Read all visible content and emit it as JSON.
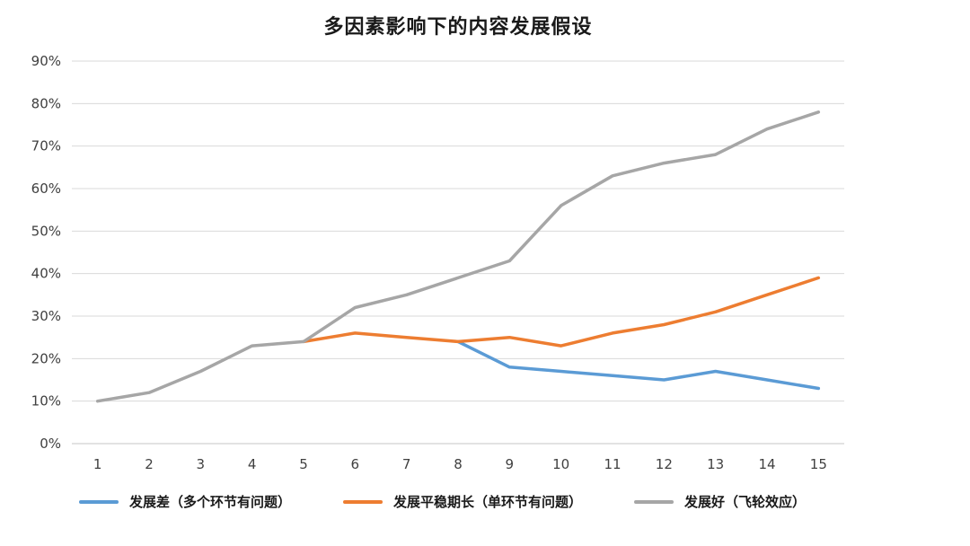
{
  "chart_data": {
    "type": "line",
    "title": "多因素影响下的内容发展假设",
    "xlabel": "",
    "ylabel": "",
    "categories": [
      "1",
      "2",
      "3",
      "4",
      "5",
      "6",
      "7",
      "8",
      "9",
      "10",
      "11",
      "12",
      "13",
      "14",
      "15"
    ],
    "series": [
      {
        "id": "poor",
        "name": "发展差（多个环节有问题）",
        "color": "#5B9BD5",
        "values": [
          null,
          null,
          null,
          null,
          null,
          null,
          null,
          24,
          18,
          17,
          16,
          15,
          17,
          15,
          13
        ]
      },
      {
        "id": "steady",
        "name": "发展平稳期长（单环节有问题）",
        "color": "#ED7D31",
        "values": [
          null,
          null,
          null,
          null,
          24,
          26,
          25,
          24,
          25,
          23,
          26,
          28,
          31,
          35,
          39
        ]
      },
      {
        "id": "good",
        "name": "发展好（飞轮效应）",
        "color": "#A6A6A6",
        "values": [
          10,
          12,
          17,
          23,
          24,
          32,
          35,
          39,
          43,
          56,
          63,
          66,
          68,
          74,
          78
        ]
      }
    ],
    "ylim": [
      0,
      90
    ],
    "y_step": 10,
    "y_ticks": [
      "0%",
      "10%",
      "20%",
      "30%",
      "40%",
      "50%",
      "60%",
      "70%",
      "80%",
      "90%"
    ],
    "grid": "horizontal",
    "gridline_color": "#D9D9D9",
    "axis_label_color": "#404040",
    "legend_position": "bottom"
  }
}
